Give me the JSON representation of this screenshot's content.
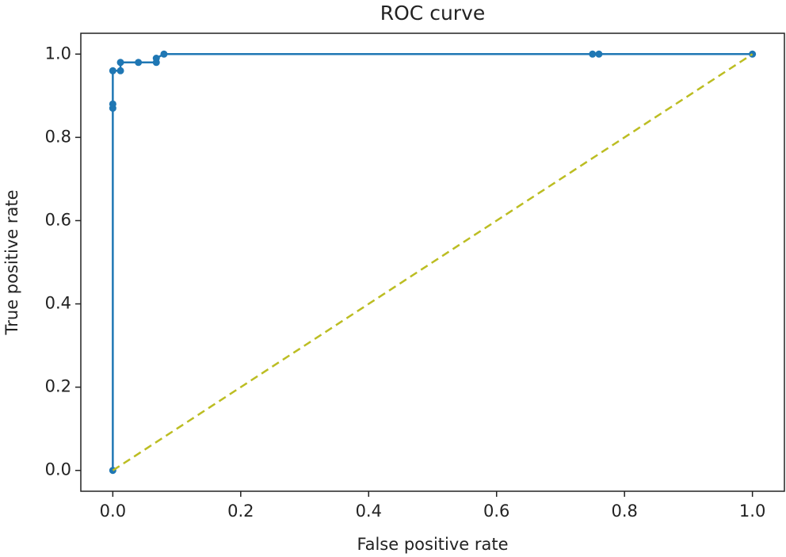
{
  "chart_data": {
    "type": "line",
    "title": "ROC curve",
    "x_label": "False positive rate",
    "y_label": "True positive rate",
    "series": [
      {
        "color": "#1f77b4",
        "markers": true,
        "dashed": false,
        "x": [
          0,
          0,
          0,
          0,
          0.012,
          0.012,
          0.04,
          0.068,
          0.068,
          0.08,
          0.75,
          0.76,
          1.0
        ],
        "values": [
          0,
          0.87,
          0.88,
          0.96,
          0.96,
          0.98,
          0.98,
          0.98,
          0.99,
          1.0,
          1.0,
          1.0,
          1.0
        ]
      },
      {
        "color": "#bcbd22",
        "markers": false,
        "dashed": true,
        "x": [
          0,
          1
        ],
        "values": [
          0,
          1
        ]
      }
    ],
    "xlim": [
      -0.05,
      1.05
    ],
    "ylim": [
      -0.05,
      1.05
    ],
    "xticks": [
      {
        "value": 0,
        "label": "0.0"
      },
      0.2,
      0.4,
      0.6,
      0.8,
      {
        "value": 1,
        "label": "1.0"
      }
    ],
    "yticks": [
      {
        "value": 0,
        "label": "0.0"
      },
      0.2,
      0.4,
      0.6,
      0.8,
      {
        "value": 1,
        "label": "1.0"
      }
    ],
    "grid": false
  }
}
